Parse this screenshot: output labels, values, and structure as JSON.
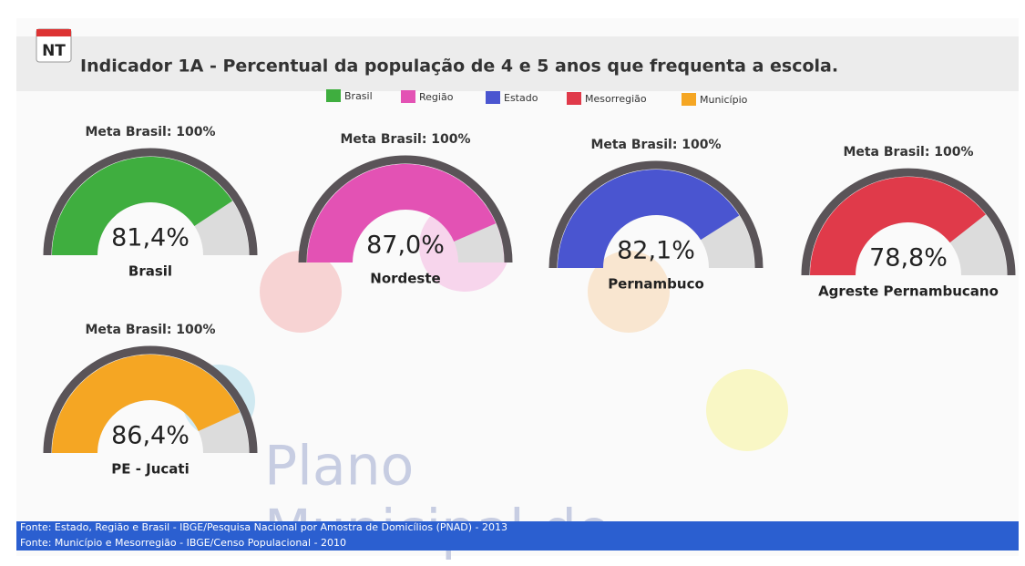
{
  "chart_data": {
    "type": "gauge",
    "badge": "NT",
    "title": "Indicador 1A - Percentual da população de 4 e 5 anos que frequenta a escola.",
    "legend": {
      "names": [
        "Brasil",
        "Região",
        "Estado",
        "Mesorregião",
        "Município"
      ],
      "colors": [
        "#3fae3f",
        "#e352b4",
        "#4a55d0",
        "#e03a4a",
        "#f5a623"
      ]
    },
    "ylim": [
      0,
      100
    ],
    "gauges": [
      {
        "label": "Brasil",
        "color": "#3fae3f",
        "value": 81.4,
        "value_label": "81,4%",
        "target_label": "Meta Brasil: 100%"
      },
      {
        "label": "Nordeste",
        "color": "#e352b4",
        "value": 87.0,
        "value_label": "87,0%",
        "target_label": "Meta Brasil: 100%"
      },
      {
        "label": "Pernambuco",
        "color": "#4a55d0",
        "value": 82.1,
        "value_label": "82,1%",
        "target_label": "Meta Brasil: 100%"
      },
      {
        "label": "Agreste Pernambucano",
        "color": "#e03a4a",
        "value": 78.8,
        "value_label": "78,8%",
        "target_label": "Meta Brasil: 100%"
      },
      {
        "label": "PE - Jucati",
        "color": "#f5a623",
        "value": 86.4,
        "value_label": "86,4%",
        "target_label": "Meta Brasil: 100%"
      }
    ],
    "watermark": [
      "Plano",
      "Municipal de"
    ],
    "sources": [
      "Fonte: Estado, Região e Brasil - IBGE/Pesquisa Nacional por Amostra de Domicílios (PNAD) - 2013",
      "Fonte: Município e Mesorregião - IBGE/Censo Populacional - 2010"
    ]
  }
}
